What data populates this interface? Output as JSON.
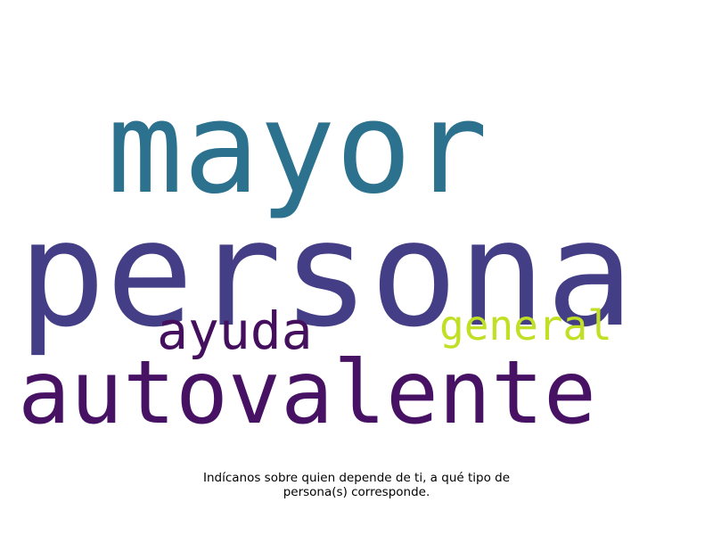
{
  "wordcloud": {
    "words": [
      {
        "text": "mayor",
        "color": "#2c728e"
      },
      {
        "text": "persona",
        "color": "#433e85"
      },
      {
        "text": "ayuda",
        "color": "#440f5d"
      },
      {
        "text": "general",
        "color": "#c0df25"
      },
      {
        "text": "autovalente",
        "color": "#471164"
      }
    ]
  },
  "caption": {
    "line1": "Indícanos sobre quien depende de ti, a qué tipo de",
    "line2": "persona(s) corresponde."
  }
}
